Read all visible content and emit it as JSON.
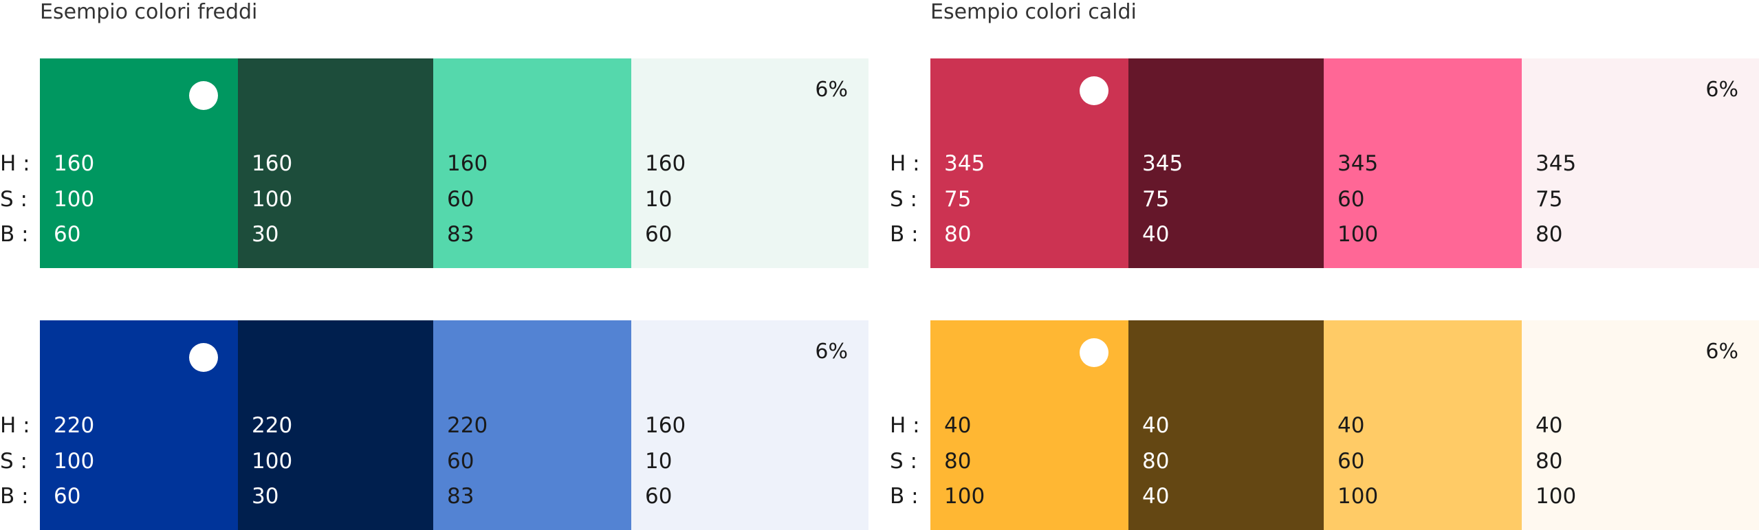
{
  "cold": {
    "title": "Esempio colori freddi",
    "rows": [
      {
        "swatches": [
          {
            "color": "#009760",
            "text": "#ffffff",
            "h": "160",
            "s": "100",
            "b": "60",
            "dot": true
          },
          {
            "color": "#1d4d3b",
            "text": "#ffffff",
            "h": "160",
            "s": "100",
            "b": "30"
          },
          {
            "color": "#55d8ac",
            "text": "#1a1a1a",
            "h": "160",
            "s": "60",
            "b": "83"
          },
          {
            "color": "#edf7f3",
            "text": "#1a1a1a",
            "h": "160",
            "s": "10",
            "b": "60",
            "pct": "6%"
          }
        ]
      },
      {
        "swatches": [
          {
            "color": "#00349a",
            "text": "#ffffff",
            "h": "220",
            "s": "100",
            "b": "60",
            "dot": true
          },
          {
            "color": "#001f4e",
            "text": "#ffffff",
            "h": "220",
            "s": "100",
            "b": "30"
          },
          {
            "color": "#5383d3",
            "text": "#1a1a1a",
            "h": "220",
            "s": "60",
            "b": "83"
          },
          {
            "color": "#eef2fa",
            "text": "#1a1a1a",
            "h": "160",
            "s": "10",
            "b": "60",
            "pct": "6%"
          }
        ]
      }
    ]
  },
  "warm": {
    "title": "Esempio colori caldi",
    "rows": [
      {
        "swatches": [
          {
            "color": "#cc3352",
            "text": "#ffffff",
            "h": "345",
            "s": "75",
            "b": "80",
            "dot": true
          },
          {
            "color": "#65172a",
            "text": "#ffffff",
            "h": "345",
            "s": "75",
            "b": "40"
          },
          {
            "color": "#ff6796",
            "text": "#1a1a1a",
            "h": "345",
            "s": "60",
            "b": "100"
          },
          {
            "color": "#fcf1f3",
            "text": "#1a1a1a",
            "h": "345",
            "s": "75",
            "b": "80",
            "pct": "6%"
          }
        ]
      },
      {
        "swatches": [
          {
            "color": "#ffb733",
            "text": "#1a1a1a",
            "h": "40",
            "s": "80",
            "b": "100",
            "dot": true
          },
          {
            "color": "#644713",
            "text": "#ffffff",
            "h": "40",
            "s": "80",
            "b": "40"
          },
          {
            "color": "#ffcb66",
            "text": "#1a1a1a",
            "h": "40",
            "s": "60",
            "b": "100"
          },
          {
            "color": "#fff9f0",
            "text": "#1a1a1a",
            "h": "40",
            "s": "80",
            "b": "100",
            "pct": "6%"
          }
        ]
      }
    ]
  },
  "labels": {
    "h": "H :",
    "s": "S :",
    "b": "B :"
  }
}
